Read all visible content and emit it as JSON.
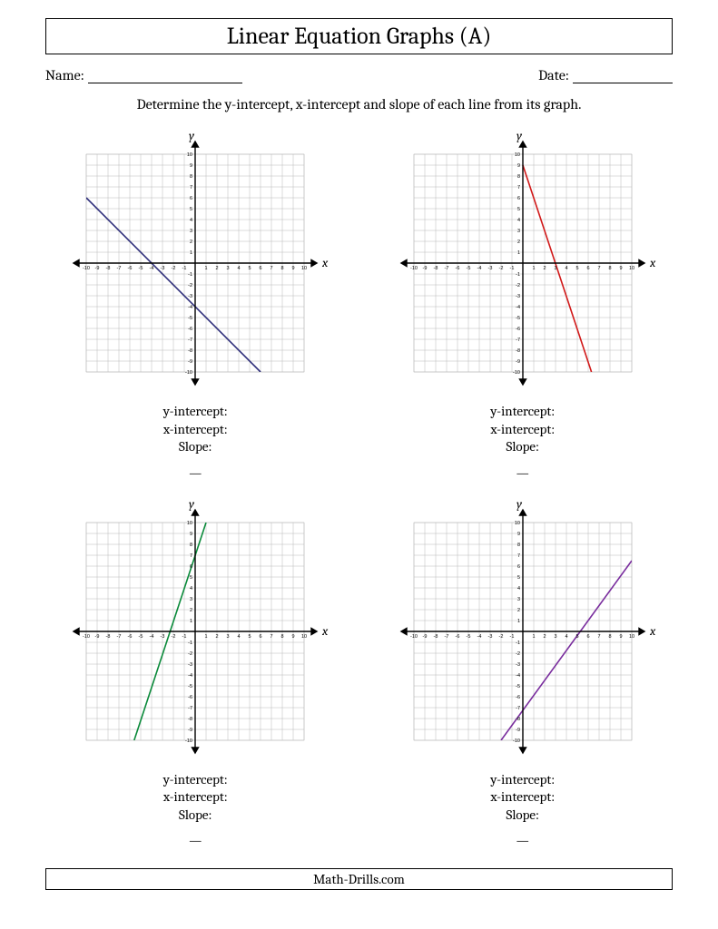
{
  "title": "Linear Equation Graphs (A)",
  "name_label": "Name:",
  "date_label": "Date:",
  "name_blank_width": 170,
  "date_blank_width": 110,
  "instruction": "Determine the y-intercept, x-intercept and slope of each line from its graph.",
  "answer_labels": {
    "y_int": "y-intercept:",
    "x_int": "x-intercept:",
    "slope": "Slope:"
  },
  "axis_labels": {
    "x": "x",
    "y": "y"
  },
  "chart_common": {
    "xlim": [
      -10,
      10
    ],
    "ylim": [
      -10,
      10
    ],
    "tick_step": 1,
    "grid_color": "#b8b8b8",
    "axis_color": "#000000",
    "background": "#ffffff",
    "tick_fontsize": 5.5,
    "axis_label_fontsize": 14,
    "line_width": 1.6,
    "svg_size": 300,
    "plot_size": 240,
    "axis_stroke_width": 1.4,
    "grid_stroke_width": 0.5
  },
  "charts": [
    {
      "line_color": "#2e2e7a",
      "p1": [
        -10,
        6
      ],
      "p2": [
        6,
        -10
      ]
    },
    {
      "line_color": "#d11919",
      "p1": [
        0,
        9
      ],
      "p2": [
        6.3,
        -10
      ]
    },
    {
      "line_color": "#0a8a3a",
      "p1": [
        -5.6,
        -10
      ],
      "p2": [
        1,
        10
      ]
    },
    {
      "line_color": "#7a2e9e",
      "p1": [
        -2,
        -10
      ],
      "p2": [
        10,
        6.5
      ]
    }
  ],
  "footer": "Math-Drills.com"
}
